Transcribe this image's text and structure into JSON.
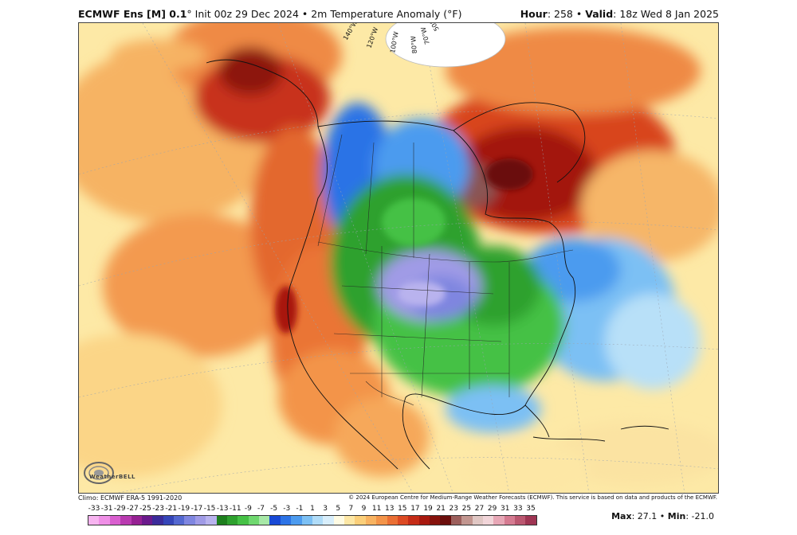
{
  "header": {
    "model": "ECMWF Ens [M] 0.1",
    "degree": "°",
    "init": " Init 00z 29 Dec 2024",
    "bullet": " • ",
    "field": "2m Temperature Anomaly (°F)",
    "hour_label": "Hour",
    "hour_value": ": 258",
    "valid_label": "Valid",
    "valid_value": ": 18z Wed 8 Jan 2025"
  },
  "footer": {
    "climo": "Climo: ECMWF ERA-5 1991-2020",
    "copyright": "© 2024 European Centre for Medium-Range Weather Forecasts (ECMWF). This service is based on data and products of the ECMWF.",
    "max_label": "Max",
    "max_value": ": 27.1",
    "min_label": "Min",
    "min_value": ": -21.0",
    "sep": " • "
  },
  "logo": {
    "text": "WeatherBELL"
  },
  "map": {
    "longitude_labels": [
      "140°W",
      "120°W",
      "100°W",
      "80°W",
      "70°W",
      "50°W"
    ]
  },
  "legend": {
    "ticks": [
      "-33",
      "-31",
      "-29",
      "-27",
      "-25",
      "-23",
      "-21",
      "-19",
      "-17",
      "-15",
      "-13",
      "-11",
      "-9",
      "-7",
      "-5",
      "-3",
      "-1",
      "1",
      "3",
      "5",
      "7",
      "9",
      "11",
      "13",
      "15",
      "17",
      "19",
      "21",
      "23",
      "25",
      "27",
      "29",
      "31",
      "33",
      "35"
    ],
    "colors": [
      "#f7b4f0",
      "#ef8fe6",
      "#d95fcf",
      "#b93ab0",
      "#962193",
      "#6b1a8c",
      "#3b2b9a",
      "#3545b8",
      "#5468d0",
      "#7f86e0",
      "#a09be6",
      "#b9b3ee",
      "#1d7f1d",
      "#2ea12e",
      "#45c145",
      "#6fd86f",
      "#a7e8a7",
      "#1849d6",
      "#2c73e6",
      "#4c9bef",
      "#7cc0f4",
      "#b0dcf8",
      "#d8eefb",
      "#fffbe3",
      "#fde7a5",
      "#fbcf7a",
      "#f8b361",
      "#f39449",
      "#ea6f34",
      "#dc4a23",
      "#c52c17",
      "#a8190f",
      "#86120c",
      "#6b0e0c",
      "#9c5f5c",
      "#c29690",
      "#e0c7c4",
      "#f1d5d9",
      "#e7a7b6",
      "#d57b91",
      "#bb5770",
      "#9f3553"
    ]
  }
}
